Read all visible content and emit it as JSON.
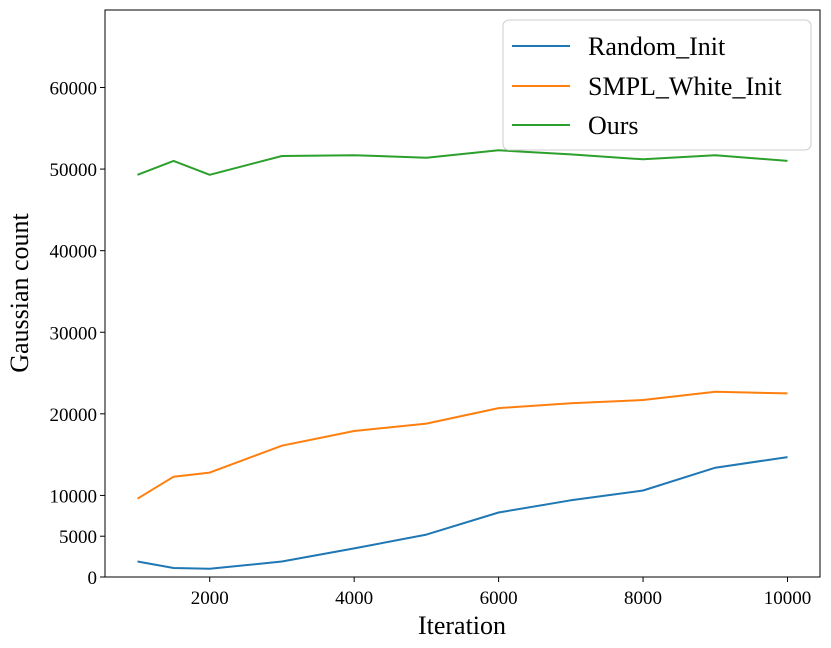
{
  "chart_data": {
    "type": "line",
    "title": "",
    "xlabel": "Iteration",
    "ylabel": "Gaussian count",
    "xlim": [
      550,
      10450
    ],
    "ylim": [
      0,
      69500
    ],
    "xticks": [
      2000,
      4000,
      6000,
      8000,
      10000
    ],
    "yticks": [
      0,
      5000,
      10000,
      20000,
      30000,
      40000,
      50000,
      60000
    ],
    "grid": false,
    "legend_position": "top-right",
    "x": [
      1000,
      1500,
      2000,
      3000,
      4000,
      5000,
      6000,
      7000,
      8000,
      9000,
      10000
    ],
    "series": [
      {
        "name": "Random_Init",
        "color": "#1f77b4",
        "values": [
          1900,
          1100,
          1000,
          1900,
          3500,
          5200,
          7900,
          9400,
          10600,
          13400,
          14700
        ]
      },
      {
        "name": "SMPL_White_Init",
        "color": "#ff7f0e",
        "values": [
          9600,
          12300,
          12800,
          16100,
          17900,
          18800,
          20700,
          21300,
          21700,
          22700,
          22500
        ]
      },
      {
        "name": "Ours",
        "color": "#2ca02c",
        "values": [
          49300,
          51000,
          49300,
          51600,
          51700,
          51400,
          52300,
          51800,
          51200,
          51700,
          51000
        ]
      }
    ]
  }
}
